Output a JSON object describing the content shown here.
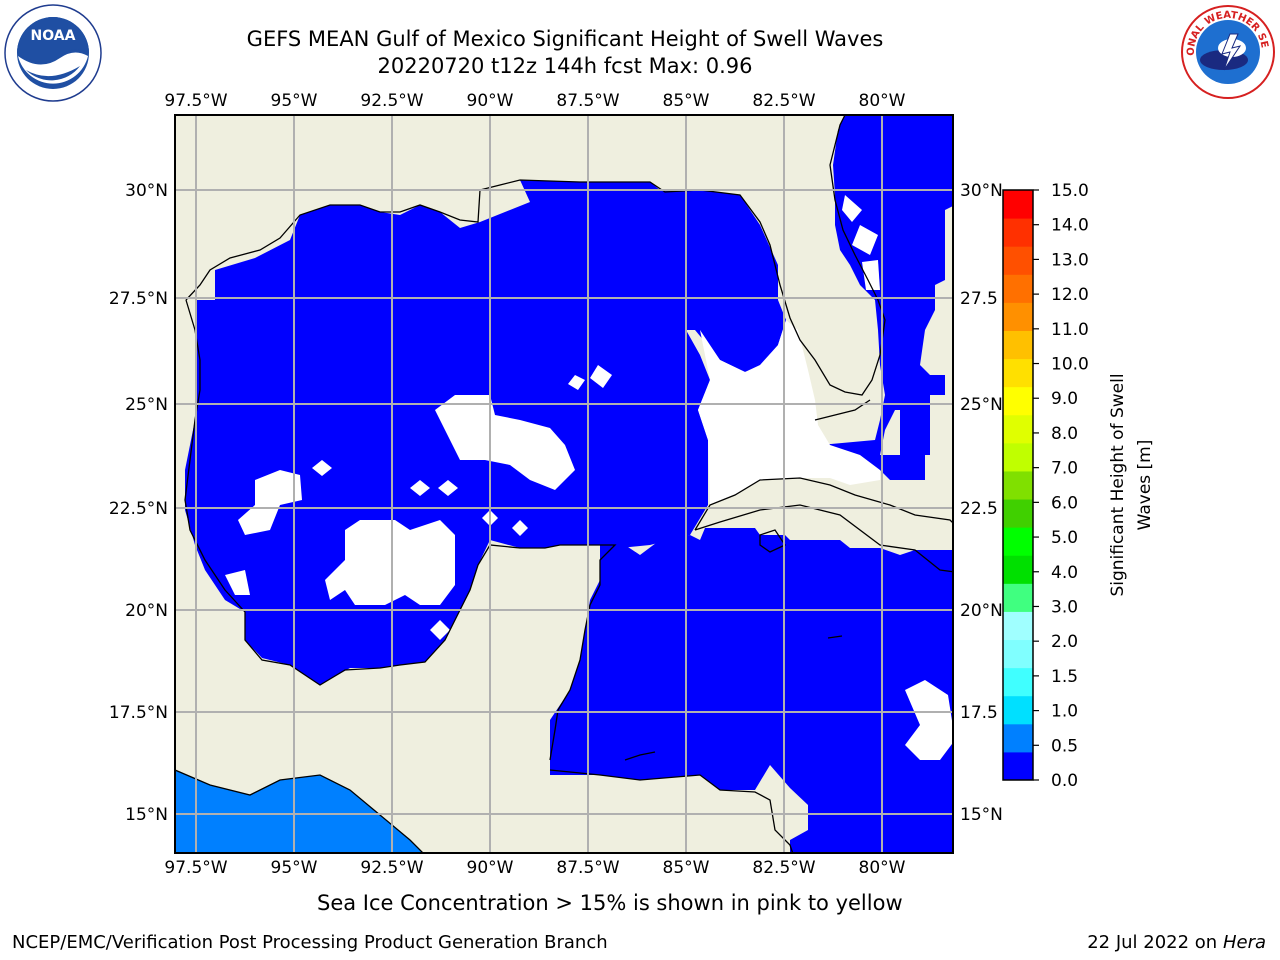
{
  "header": {
    "title_line1": "GEFS MEAN Gulf of Mexico Significant Height of Swell Waves",
    "title_line2": "20220720 t12z 144h fcst   Max: 0.96"
  },
  "logos": {
    "left": {
      "icon": "noaa-logo",
      "text": "NOAA"
    },
    "right": {
      "icon": "national-weather-service-logo",
      "text": "NATIONAL WEATHER SERVICE"
    }
  },
  "map": {
    "lon_labels": [
      "97.5°W",
      "95°W",
      "92.5°W",
      "90°W",
      "87.5°W",
      "85°W",
      "82.5°W",
      "80°W"
    ],
    "lat_labels_left": [
      "30°N",
      "27.5°N",
      "25°N",
      "22.5°N",
      "20°N",
      "17.5°N",
      "15°N"
    ],
    "lat_labels_right": [
      "30°N",
      "27.5",
      "25°N",
      "22.5",
      "20°N",
      "17.5",
      "15°N"
    ],
    "colors": {
      "land": "#efefdf",
      "water_0": "#0000ff",
      "water_05": "#0080ff",
      "grid": "#b0b0b0"
    }
  },
  "colorbar": {
    "label": "Significant Height of Swell Waves [m]",
    "ticks": [
      "15.0",
      "14.0",
      "13.0",
      "12.0",
      "11.0",
      "10.0",
      "9.0",
      "8.0",
      "7.0",
      "6.0",
      "5.0",
      "4.0",
      "3.0",
      "2.0",
      "1.5",
      "1.0",
      "0.5",
      "0.0"
    ],
    "colors": [
      "#0000ff",
      "#0080ff",
      "#00e0ff",
      "#40ffff",
      "#80ffff",
      "#a0ffff",
      "#40ff80",
      "#00e000",
      "#00ff00",
      "#40d000",
      "#80e000",
      "#c0ff00",
      "#e0ff00",
      "#ffff00",
      "#ffe000",
      "#ffc000",
      "#ff9000",
      "#ff7000",
      "#ff5000",
      "#ff3000",
      "#ff0000"
    ]
  },
  "note": "Sea Ice Concentration > 15% is shown in pink to yellow",
  "footer": {
    "left": "NCEP/EMC/Verification Post Processing Product Generation Branch",
    "date": "22 Jul 2022 on ",
    "host": "Hera"
  }
}
